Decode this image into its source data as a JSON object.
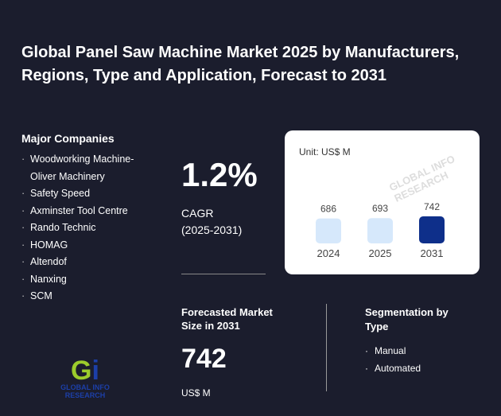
{
  "title": "Global Panel Saw Machine Market 2025 by Manufacturers, Regions, Type and Application, Forecast to 2031",
  "companies": {
    "heading": "Major Companies",
    "items": [
      "Woodworking Machine-Oliver Machinery",
      "Safety Speed",
      "Axminster Tool Centre",
      "Rando Technic",
      "HOMAG",
      "Altendof",
      "Nanxing",
      "SCM"
    ]
  },
  "cagr": {
    "value": "1.2%",
    "label": "CAGR",
    "period": "(2025-2031)"
  },
  "forecast": {
    "label": "Forecasted Market Size in 2031",
    "value": "742",
    "unit": "US$ M"
  },
  "segmentation": {
    "heading": "Segmentation by Type",
    "items": [
      "Manual",
      "Automated"
    ]
  },
  "logo": {
    "text": "GLOBAL INFO RESEARCH",
    "mark": "Gi"
  },
  "chart_data": {
    "type": "bar",
    "unit_label": "Unit: US$ M",
    "categories": [
      "2024",
      "2025",
      "2031"
    ],
    "values": [
      686,
      693,
      742
    ],
    "colors": [
      "#d6e8fb",
      "#d6e8fb",
      "#0e2f8a"
    ]
  }
}
